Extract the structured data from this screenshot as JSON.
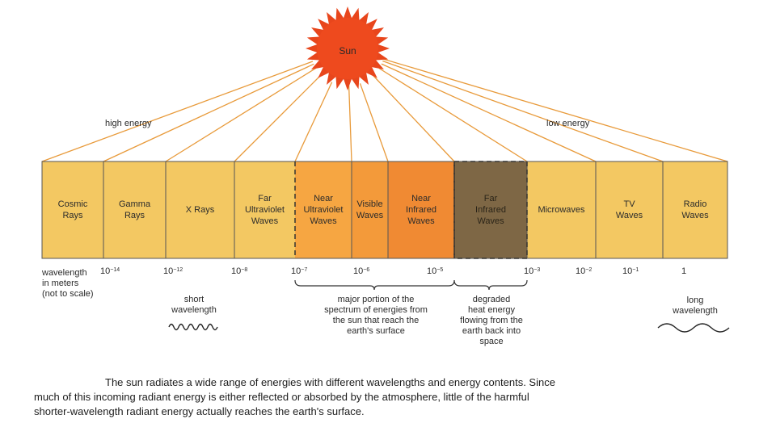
{
  "sun_label": "Sun",
  "energy_labels": {
    "high": "high energy",
    "low": "low energy"
  },
  "bands": [
    {
      "id": "cosmic",
      "lines": [
        "Cosmic",
        "Rays"
      ],
      "color": "#f3c862"
    },
    {
      "id": "gamma",
      "lines": [
        "Gamma",
        "Rays"
      ],
      "color": "#f3c862"
    },
    {
      "id": "xray",
      "lines": [
        "X Rays"
      ],
      "color": "#f3c862"
    },
    {
      "id": "far-uv",
      "lines": [
        "Far",
        "Ultraviolet",
        "Waves"
      ],
      "color": "#f3c862"
    },
    {
      "id": "near-uv",
      "lines": [
        "Near",
        "Ultraviolet",
        "Waves"
      ],
      "color": "#f6a642"
    },
    {
      "id": "visible",
      "lines": [
        "Visible",
        "Waves"
      ],
      "color": "#f39a3a"
    },
    {
      "id": "near-ir",
      "lines": [
        "Near",
        "Infrared",
        "Waves"
      ],
      "color": "#f08a33"
    },
    {
      "id": "far-ir",
      "lines": [
        "Far",
        "Infrared",
        "Waves"
      ],
      "color": "#7e6745"
    },
    {
      "id": "microwaves",
      "lines": [
        "Microwaves"
      ],
      "color": "#f3c862"
    },
    {
      "id": "tv",
      "lines": [
        "TV",
        "Waves"
      ],
      "color": "#f3c862"
    },
    {
      "id": "radio",
      "lines": [
        "Radio",
        "Waves"
      ],
      "color": "#f3c862"
    }
  ],
  "axis_title": [
    "wavelength",
    "in meters",
    "(not to scale)"
  ],
  "wavelength_ticks": [
    {
      "base": "10",
      "exp": "−14"
    },
    {
      "base": "10",
      "exp": "−12"
    },
    {
      "base": "10",
      "exp": "−8"
    },
    {
      "base": "10",
      "exp": "−7"
    },
    {
      "base": "10",
      "exp": "−6"
    },
    {
      "base": "10",
      "exp": "−5"
    },
    {
      "base": "10",
      "exp": "−3"
    },
    {
      "base": "10",
      "exp": "−2"
    },
    {
      "base": "10",
      "exp": "−1"
    },
    {
      "base": "1",
      "exp": ""
    }
  ],
  "short_wavelength": [
    "short",
    "wavelength"
  ],
  "long_wavelength": [
    "long",
    "wavelength"
  ],
  "major_portion": [
    "major portion of the",
    "spectrum of energies from",
    "the sun that reach the",
    "earth's surface"
  ],
  "degraded": [
    "degraded",
    "heat energy",
    "flowing from the",
    "earth back into",
    "space"
  ],
  "caption": [
    "The sun radiates a wide range of energies with different wavelengths and energy contents. Since",
    "much of this incoming radiant energy is either reflected or absorbed by the atmosphere, little of the harmful",
    "shorter-wavelength radiant energy actually reaches the earth's surface."
  ],
  "colors": {
    "sun": "#ee4a1e",
    "sun_rays": "#e8461c",
    "lines": "#e89a3a",
    "band_border": "#555555"
  }
}
